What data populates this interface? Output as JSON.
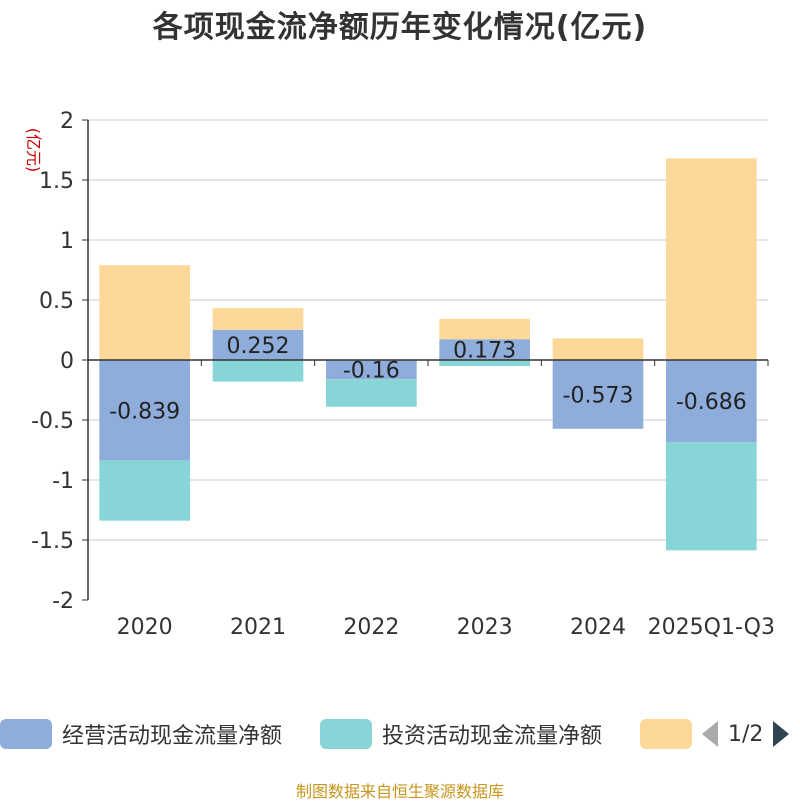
{
  "title": "各项现金流净额历年变化情况(亿元)",
  "footer": {
    "text": "制图数据来自恒生聚源数据库",
    "color": "#c8961e"
  },
  "pager": {
    "label": "1/2"
  },
  "colors": {
    "operating": "#8eaddb",
    "investing": "#87d5d6",
    "financing": "#fdd898",
    "unit": "#cc0000"
  },
  "chart_data": {
    "type": "bar",
    "stacked": true,
    "ylabel": "(亿元)",
    "ylim": [
      -2,
      2
    ],
    "yticks": [
      2,
      1.5,
      1,
      0.5,
      0,
      -0.5,
      -1,
      -1.5,
      -2
    ],
    "ytick_labels": [
      "2",
      "1.5",
      "1",
      "0.5",
      "0",
      "-0.5",
      "-1",
      "-1.5",
      "-2"
    ],
    "categories": [
      "2020",
      "2021",
      "2022",
      "2023",
      "2024",
      "2025Q1-Q3"
    ],
    "series": [
      {
        "name": "经营活动现金流量净额",
        "values": [
          -0.839,
          0.252,
          -0.16,
          0.173,
          -0.573,
          -0.686
        ],
        "labels": [
          "-0.839",
          "0.252",
          "-0.16",
          "0.173",
          "-0.573",
          "-0.686"
        ]
      },
      {
        "name": "投资活动现金流量净额",
        "values": [
          -0.5,
          -0.18,
          -0.23,
          -0.05,
          0.0,
          -0.9
        ]
      },
      {
        "name": "",
        "values": [
          0.79,
          0.18,
          0.0,
          0.17,
          0.18,
          1.68
        ]
      }
    ],
    "legend_position": "bottom"
  }
}
